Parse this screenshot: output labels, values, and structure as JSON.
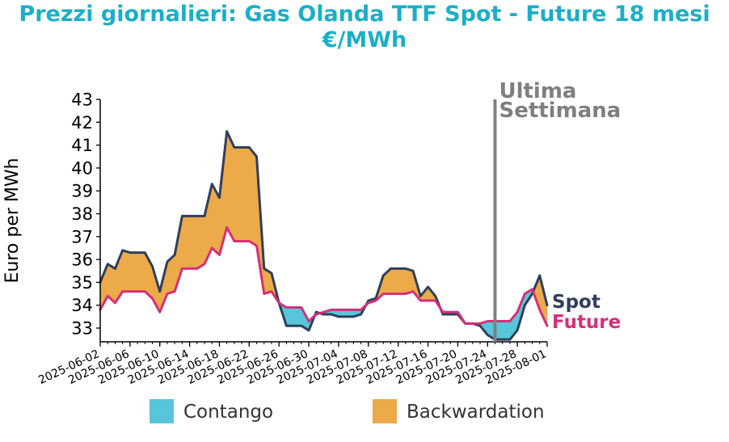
{
  "title_line1": "Prezzi giornalieri: Gas Olanda TTF Spot - Future 18 mesi",
  "title_line2": "€/MWh",
  "colors": {
    "title": "#1aafc9",
    "spot": "#2e3f5c",
    "future": "#d62f79",
    "contango": "#58c6da",
    "backwardation": "#edaa49",
    "marker_line": "#808080",
    "marker_text": "#7f7f7f"
  },
  "chart_data": {
    "type": "line",
    "ylabel": "Euro per MWh",
    "ylim": [
      32.4,
      43
    ],
    "yticks": [
      33,
      34,
      35,
      36,
      37,
      38,
      39,
      40,
      41,
      42,
      43
    ],
    "xlim": [
      "2025-06-02",
      "2025-08-01"
    ],
    "xticks": [
      "2025-06-02",
      "2025-06-06",
      "2025-06-10",
      "2025-06-14",
      "2025-06-18",
      "2025-06-22",
      "2025-06-26",
      "2025-06-30",
      "2025-07-04",
      "2025-07-08",
      "2025-07-12",
      "2025-07-16",
      "2025-07-20",
      "2025-07-24",
      "2025-07-28",
      "2025-08-01"
    ],
    "marker": {
      "date": "2025-07-25",
      "label_line1": "Ultima",
      "label_line2": "Settimana"
    },
    "series": [
      {
        "name": "Spot",
        "points": [
          [
            "2025-06-02",
            35.0
          ],
          [
            "2025-06-03",
            35.8
          ],
          [
            "2025-06-04",
            35.6
          ],
          [
            "2025-06-05",
            36.4
          ],
          [
            "2025-06-06",
            36.3
          ],
          [
            "2025-06-07",
            36.3
          ],
          [
            "2025-06-08",
            36.3
          ],
          [
            "2025-06-09",
            35.7
          ],
          [
            "2025-06-10",
            34.6
          ],
          [
            "2025-06-11",
            35.9
          ],
          [
            "2025-06-12",
            36.2
          ],
          [
            "2025-06-13",
            37.9
          ],
          [
            "2025-06-14",
            37.9
          ],
          [
            "2025-06-15",
            37.9
          ],
          [
            "2025-06-16",
            37.9
          ],
          [
            "2025-06-17",
            39.3
          ],
          [
            "2025-06-18",
            38.7
          ],
          [
            "2025-06-19",
            41.6
          ],
          [
            "2025-06-20",
            40.9
          ],
          [
            "2025-06-21",
            40.9
          ],
          [
            "2025-06-22",
            40.9
          ],
          [
            "2025-06-23",
            40.5
          ],
          [
            "2025-06-24",
            35.6
          ],
          [
            "2025-06-25",
            35.4
          ],
          [
            "2025-06-26",
            34.1
          ],
          [
            "2025-06-27",
            33.1
          ],
          [
            "2025-06-28",
            33.1
          ],
          [
            "2025-06-29",
            33.1
          ],
          [
            "2025-06-30",
            32.9
          ],
          [
            "2025-07-01",
            33.7
          ],
          [
            "2025-07-02",
            33.6
          ],
          [
            "2025-07-03",
            33.6
          ],
          [
            "2025-07-04",
            33.5
          ],
          [
            "2025-07-05",
            33.5
          ],
          [
            "2025-07-06",
            33.5
          ],
          [
            "2025-07-07",
            33.6
          ],
          [
            "2025-07-08",
            34.2
          ],
          [
            "2025-07-09",
            34.3
          ],
          [
            "2025-07-10",
            35.3
          ],
          [
            "2025-07-11",
            35.6
          ],
          [
            "2025-07-12",
            35.6
          ],
          [
            "2025-07-13",
            35.6
          ],
          [
            "2025-07-14",
            35.5
          ],
          [
            "2025-07-15",
            34.4
          ],
          [
            "2025-07-16",
            34.8
          ],
          [
            "2025-07-17",
            34.4
          ],
          [
            "2025-07-18",
            33.6
          ],
          [
            "2025-07-19",
            33.6
          ],
          [
            "2025-07-20",
            33.6
          ],
          [
            "2025-07-21",
            33.2
          ],
          [
            "2025-07-22",
            33.2
          ],
          [
            "2025-07-23",
            33.1
          ],
          [
            "2025-07-24",
            32.7
          ],
          [
            "2025-07-25",
            32.5
          ],
          [
            "2025-07-26",
            32.5
          ],
          [
            "2025-07-27",
            32.5
          ],
          [
            "2025-07-28",
            32.9
          ],
          [
            "2025-07-29",
            34.0
          ],
          [
            "2025-07-30",
            34.5
          ],
          [
            "2025-07-31",
            35.3
          ],
          [
            "2025-08-01",
            34.0
          ]
        ]
      },
      {
        "name": "Future",
        "points": [
          [
            "2025-06-02",
            33.8
          ],
          [
            "2025-06-03",
            34.4
          ],
          [
            "2025-06-04",
            34.1
          ],
          [
            "2025-06-05",
            34.6
          ],
          [
            "2025-06-06",
            34.6
          ],
          [
            "2025-06-07",
            34.6
          ],
          [
            "2025-06-08",
            34.6
          ],
          [
            "2025-06-09",
            34.3
          ],
          [
            "2025-06-10",
            33.7
          ],
          [
            "2025-06-11",
            34.5
          ],
          [
            "2025-06-12",
            34.6
          ],
          [
            "2025-06-13",
            35.6
          ],
          [
            "2025-06-14",
            35.6
          ],
          [
            "2025-06-15",
            35.6
          ],
          [
            "2025-06-16",
            35.8
          ],
          [
            "2025-06-17",
            36.5
          ],
          [
            "2025-06-18",
            36.2
          ],
          [
            "2025-06-19",
            37.4
          ],
          [
            "2025-06-20",
            36.8
          ],
          [
            "2025-06-21",
            36.8
          ],
          [
            "2025-06-22",
            36.8
          ],
          [
            "2025-06-23",
            36.6
          ],
          [
            "2025-06-24",
            34.5
          ],
          [
            "2025-06-25",
            34.6
          ],
          [
            "2025-06-26",
            34.1
          ],
          [
            "2025-06-27",
            33.9
          ],
          [
            "2025-06-28",
            33.9
          ],
          [
            "2025-06-29",
            33.9
          ],
          [
            "2025-06-30",
            33.3
          ],
          [
            "2025-07-01",
            33.6
          ],
          [
            "2025-07-02",
            33.7
          ],
          [
            "2025-07-03",
            33.8
          ],
          [
            "2025-07-04",
            33.8
          ],
          [
            "2025-07-05",
            33.8
          ],
          [
            "2025-07-06",
            33.8
          ],
          [
            "2025-07-07",
            33.8
          ],
          [
            "2025-07-08",
            34.1
          ],
          [
            "2025-07-09",
            34.2
          ],
          [
            "2025-07-10",
            34.5
          ],
          [
            "2025-07-11",
            34.5
          ],
          [
            "2025-07-12",
            34.5
          ],
          [
            "2025-07-13",
            34.5
          ],
          [
            "2025-07-14",
            34.6
          ],
          [
            "2025-07-15",
            34.2
          ],
          [
            "2025-07-16",
            34.2
          ],
          [
            "2025-07-17",
            34.2
          ],
          [
            "2025-07-18",
            33.7
          ],
          [
            "2025-07-19",
            33.7
          ],
          [
            "2025-07-20",
            33.7
          ],
          [
            "2025-07-21",
            33.2
          ],
          [
            "2025-07-22",
            33.2
          ],
          [
            "2025-07-23",
            33.2
          ],
          [
            "2025-07-24",
            33.3
          ],
          [
            "2025-07-25",
            33.3
          ],
          [
            "2025-07-26",
            33.3
          ],
          [
            "2025-07-27",
            33.3
          ],
          [
            "2025-07-28",
            33.7
          ],
          [
            "2025-07-29",
            34.5
          ],
          [
            "2025-07-30",
            34.7
          ],
          [
            "2025-07-31",
            33.8
          ],
          [
            "2025-08-01",
            33.1
          ]
        ]
      }
    ],
    "fills": [
      {
        "name": "Contango",
        "condition": "Future > Spot"
      },
      {
        "name": "Backwardation",
        "condition": "Spot > Future"
      }
    ],
    "legend": {
      "position": "bottom",
      "entries": [
        "Contango",
        "Backwardation"
      ]
    }
  }
}
